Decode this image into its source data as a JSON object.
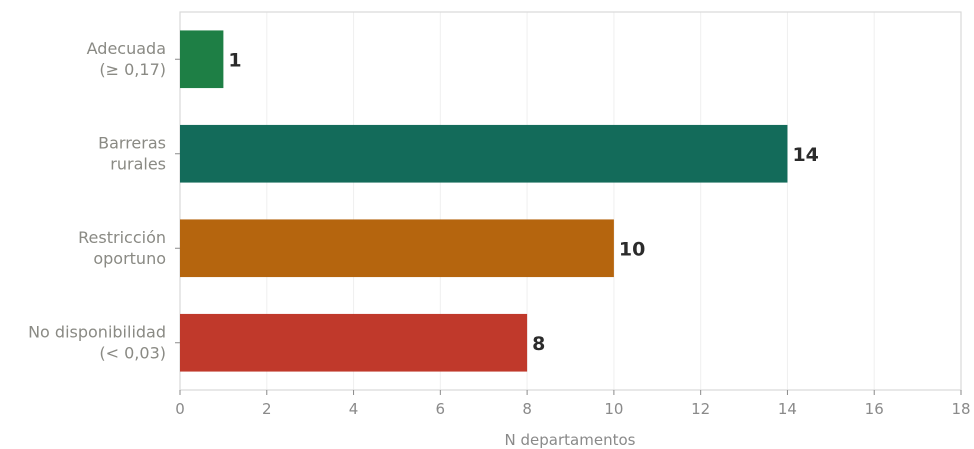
{
  "chart_data": {
    "type": "bar",
    "orientation": "horizontal",
    "categories": [
      [
        "Adecuada",
        "(≥ 0,17)"
      ],
      [
        "Barreras",
        "rurales"
      ],
      [
        "Restricción",
        "oportuno"
      ],
      [
        "No disponibilidad",
        "(< 0,03)"
      ]
    ],
    "values": [
      1,
      14,
      10,
      8
    ],
    "colors": [
      "#1e7f45",
      "#136b5a",
      "#b5650e",
      "#c0392b"
    ],
    "xlabel": "N departamentos",
    "ylabel": "",
    "xlim": [
      0,
      18
    ],
    "xticks": [
      0,
      2,
      4,
      6,
      8,
      10,
      12,
      14,
      16,
      18
    ],
    "grid": "vertical",
    "legend": "none"
  }
}
